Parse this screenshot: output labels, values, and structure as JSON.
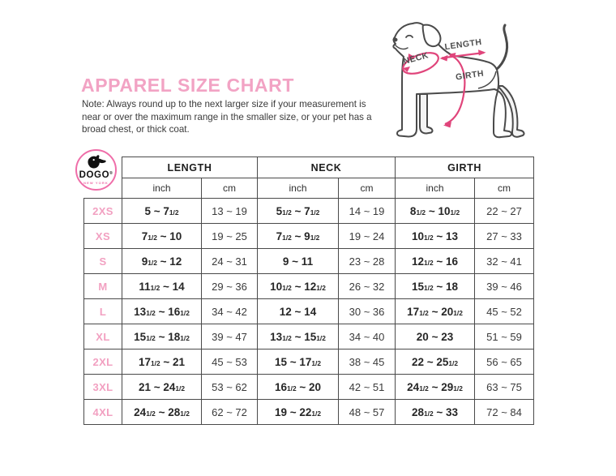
{
  "page": {
    "title": "APPAREL SIZE CHART",
    "note": "Note: Always round up to the next larger size if your measurement is near or over the maximum range in the smaller size, or your pet has a broad chest, or thick coat."
  },
  "logo": {
    "brand": "DOGO",
    "registered": "®",
    "sub": "NEW YORK"
  },
  "diagram": {
    "neck_label": "NECK",
    "length_label": "LENGTH",
    "girth_label": "GIRTH"
  },
  "colors": {
    "title_pink": "#f2a3c4",
    "size_label_pink": "#f2a0c1",
    "logo_ring_pink": "#ef6ea9",
    "arrow_pink": "#e0457b",
    "outline_gray": "#4a4a4a",
    "text_dark": "#3a3a3a",
    "table_border": "#4a4a4a"
  },
  "chart_data": {
    "type": "table",
    "title": "APPAREL SIZE CHART",
    "column_groups": [
      "LENGTH",
      "NECK",
      "GIRTH"
    ],
    "sub_columns": [
      "inch",
      "cm"
    ],
    "rows": [
      {
        "size": "2XS",
        "length": {
          "inch": "5 ~ 7½",
          "cm": "13 ~ 19"
        },
        "neck": {
          "inch": "5½ ~ 7½",
          "cm": "14 ~ 19"
        },
        "girth": {
          "inch": "8½ ~ 10½",
          "cm": "22 ~ 27"
        }
      },
      {
        "size": "XS",
        "length": {
          "inch": "7½ ~ 10",
          "cm": "19 ~ 25"
        },
        "neck": {
          "inch": "7½ ~ 9½",
          "cm": "19 ~ 24"
        },
        "girth": {
          "inch": "10½ ~ 13",
          "cm": "27 ~ 33"
        }
      },
      {
        "size": "S",
        "length": {
          "inch": "9½ ~ 12",
          "cm": "24 ~ 31"
        },
        "neck": {
          "inch": "9 ~ 11",
          "cm": "23 ~ 28"
        },
        "girth": {
          "inch": "12½ ~ 16",
          "cm": "32 ~ 41"
        }
      },
      {
        "size": "M",
        "length": {
          "inch": "11½ ~ 14",
          "cm": "29 ~ 36"
        },
        "neck": {
          "inch": "10½ ~ 12½",
          "cm": "26 ~ 32"
        },
        "girth": {
          "inch": "15½ ~ 18",
          "cm": "39 ~ 46"
        }
      },
      {
        "size": "L",
        "length": {
          "inch": "13½ ~ 16½",
          "cm": "34 ~ 42"
        },
        "neck": {
          "inch": "12 ~ 14",
          "cm": "30 ~ 36"
        },
        "girth": {
          "inch": "17½ ~ 20½",
          "cm": "45 ~ 52"
        }
      },
      {
        "size": "XL",
        "length": {
          "inch": "15½ ~ 18½",
          "cm": "39 ~ 47"
        },
        "neck": {
          "inch": "13½ ~ 15½",
          "cm": "34 ~ 40"
        },
        "girth": {
          "inch": "20 ~ 23",
          "cm": "51 ~ 59"
        }
      },
      {
        "size": "2XL",
        "length": {
          "inch": "17½ ~ 21",
          "cm": "45 ~ 53"
        },
        "neck": {
          "inch": "15 ~ 17½",
          "cm": "38 ~ 45"
        },
        "girth": {
          "inch": "22 ~ 25½",
          "cm": "56 ~ 65"
        }
      },
      {
        "size": "3XL",
        "length": {
          "inch": "21 ~ 24½",
          "cm": "53 ~ 62"
        },
        "neck": {
          "inch": "16½ ~ 20",
          "cm": "42 ~ 51"
        },
        "girth": {
          "inch": "24½ ~ 29½",
          "cm": "63 ~ 75"
        }
      },
      {
        "size": "4XL",
        "length": {
          "inch": "24½ ~ 28½",
          "cm": "62 ~ 72"
        },
        "neck": {
          "inch": "19 ~ 22½",
          "cm": "48 ~ 57"
        },
        "girth": {
          "inch": "28½ ~ 33",
          "cm": "72 ~ 84"
        }
      }
    ]
  }
}
